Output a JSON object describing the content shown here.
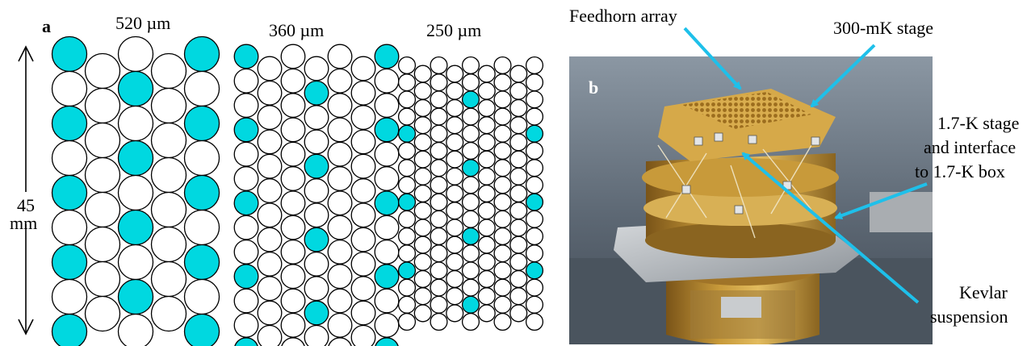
{
  "panel_a": {
    "label": "a",
    "arrays": [
      {
        "pitch_label": "520 µm",
        "pitch_um": 520,
        "highlighted_pattern": "outer pair on one row, middle on the next"
      },
      {
        "pitch_label": "360 µm",
        "pitch_um": 360
      },
      {
        "pitch_label": "250 µm",
        "pitch_um": 250
      }
    ],
    "dimension": {
      "value": "45",
      "unit": "mm"
    },
    "colors": {
      "highlight": "#00d8e0",
      "pixel": "#ffffff",
      "outline": "#000000"
    }
  },
  "panel_b": {
    "label": "b",
    "callouts": {
      "feedhorn": "Feedhorn array",
      "stage_300mk": "300-mK stage",
      "stage_17k_line1": "1.7-K stage",
      "stage_17k_line2": "and interface",
      "stage_17k_line3": "to 1.7-K box",
      "kevlar_line1": "Kevlar",
      "kevlar_line2": "suspension"
    },
    "colors": {
      "arrow": "#1ec0ea",
      "brass": "#c89a3a",
      "aluminium": "#b8bcc0"
    }
  }
}
